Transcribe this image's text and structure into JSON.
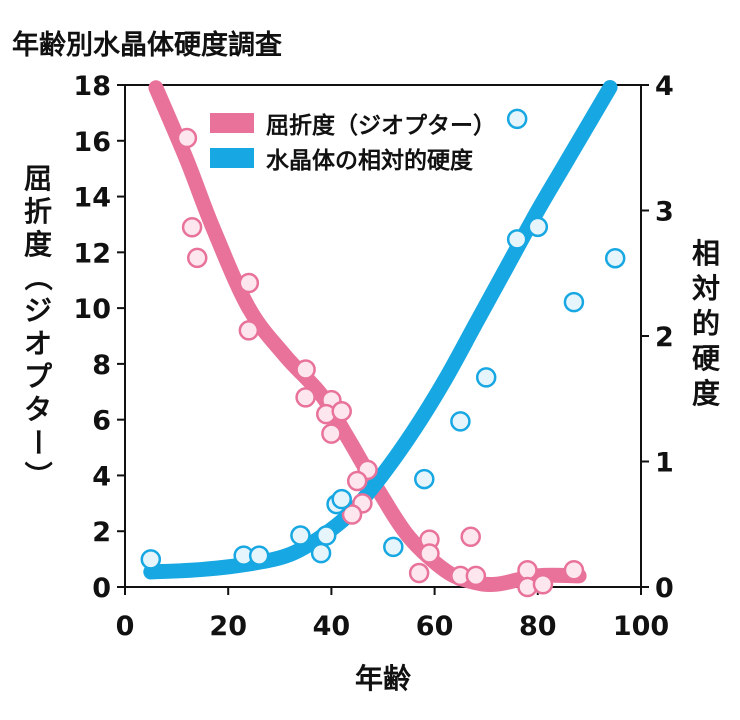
{
  "chart_data": {
    "type": "scatter",
    "title": "年齢別水晶体硬度調査",
    "xlabel": "年齢",
    "ylabel_left": "屈折度（ジオプター）",
    "ylabel_right": "相対的硬度",
    "xlim": [
      0,
      100
    ],
    "ylim_left": [
      0,
      18
    ],
    "ylim_right": [
      0,
      4
    ],
    "x_ticks": [
      "0",
      "20",
      "40",
      "60",
      "80",
      "100"
    ],
    "y_left_ticks": [
      "0",
      "2",
      "4",
      "6",
      "8",
      "10",
      "12",
      "14",
      "16",
      "18"
    ],
    "y_right_ticks": [
      "0",
      "1",
      "2",
      "3",
      "4"
    ],
    "grid": false,
    "legend": "top-center",
    "series": [
      {
        "name": "屈折度（ジオプター）",
        "axis": "left",
        "color": "#e8729a",
        "marker_fill": "#fde6ee",
        "points": [
          [
            12,
            16.1
          ],
          [
            13,
            12.9
          ],
          [
            14,
            11.8
          ],
          [
            24,
            10.9
          ],
          [
            24,
            9.2
          ],
          [
            35,
            7.8
          ],
          [
            35,
            6.8
          ],
          [
            40,
            6.7
          ],
          [
            39,
            6.2
          ],
          [
            42,
            6.3
          ],
          [
            40,
            5.5
          ],
          [
            47,
            4.2
          ],
          [
            45,
            3.8
          ],
          [
            46,
            3.0
          ],
          [
            44,
            2.6
          ],
          [
            59,
            1.7
          ],
          [
            59,
            1.2
          ],
          [
            67,
            1.8
          ],
          [
            57,
            0.5
          ],
          [
            65,
            0.4
          ],
          [
            68,
            0.4
          ],
          [
            78,
            0.6
          ],
          [
            78,
            0.0
          ],
          [
            81,
            0.1
          ],
          [
            87,
            0.6
          ]
        ],
        "trend": [
          [
            6,
            17.9
          ],
          [
            12,
            15.3
          ],
          [
            17,
            12.9
          ],
          [
            24,
            10.0
          ],
          [
            31,
            8.3
          ],
          [
            38,
            6.9
          ],
          [
            43,
            5.4
          ],
          [
            49,
            3.5
          ],
          [
            55,
            1.8
          ],
          [
            62,
            0.6
          ],
          [
            67,
            0.2
          ],
          [
            72,
            0.1
          ],
          [
            80,
            0.4
          ],
          [
            88,
            0.4
          ]
        ]
      },
      {
        "name": "水晶体の相対的硬度",
        "axis": "right",
        "color": "#17a7e2",
        "marker_fill": "#e6f5fc",
        "points": [
          [
            5,
            0.22
          ],
          [
            23,
            0.25
          ],
          [
            26,
            0.25
          ],
          [
            34,
            0.41
          ],
          [
            38,
            0.27
          ],
          [
            39,
            0.41
          ],
          [
            41,
            0.66
          ],
          [
            42,
            0.7
          ],
          [
            52,
            0.32
          ],
          [
            58,
            0.86
          ],
          [
            65,
            1.32
          ],
          [
            70,
            1.67
          ],
          [
            76,
            3.73
          ],
          [
            76,
            2.77
          ],
          [
            80,
            2.87
          ],
          [
            87,
            2.27
          ],
          [
            95,
            2.62
          ]
        ],
        "trend": [
          [
            5,
            0.12
          ],
          [
            15,
            0.14
          ],
          [
            25,
            0.19
          ],
          [
            32,
            0.26
          ],
          [
            38,
            0.4
          ],
          [
            44,
            0.6
          ],
          [
            50,
            0.9
          ],
          [
            56,
            1.25
          ],
          [
            62,
            1.65
          ],
          [
            68,
            2.1
          ],
          [
            74,
            2.55
          ],
          [
            80,
            3.0
          ],
          [
            85,
            3.35
          ],
          [
            90,
            3.7
          ],
          [
            94,
            3.98
          ]
        ]
      }
    ]
  }
}
